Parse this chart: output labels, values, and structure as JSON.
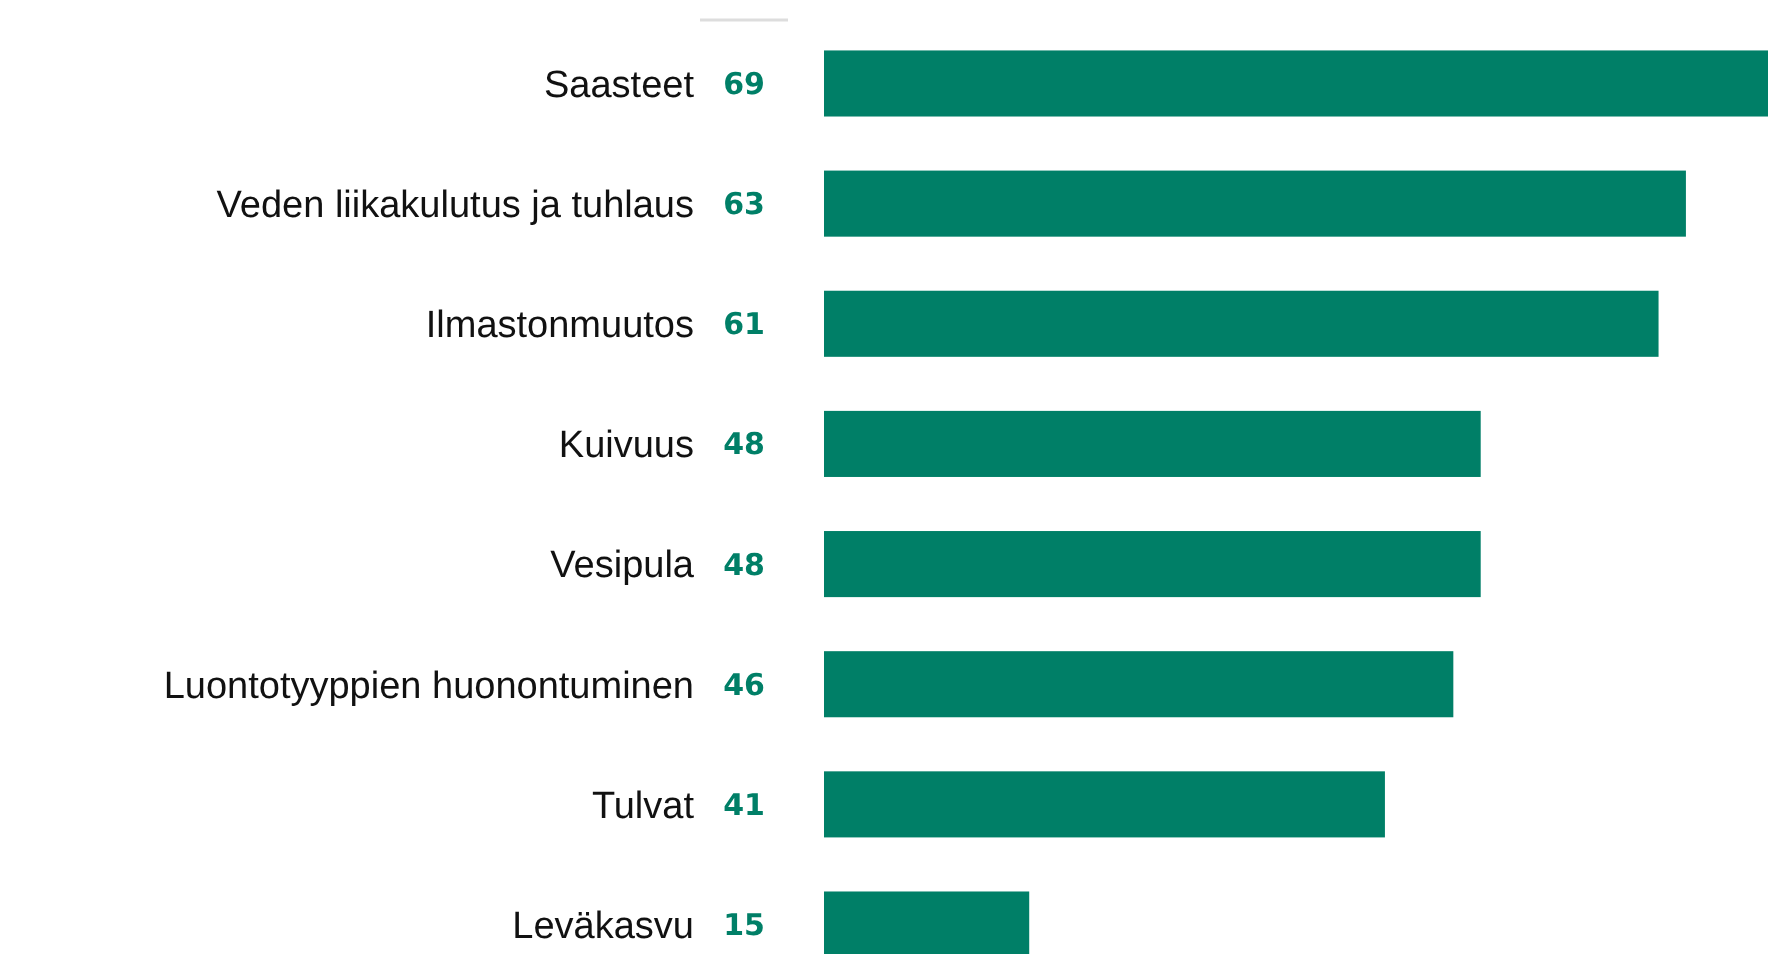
{
  "chart_data": {
    "type": "bar",
    "orientation": "horizontal",
    "categories": [
      "Saasteet",
      "Veden liikakulutus ja tuhlaus",
      "Ilmastonmuutos",
      "Kuivuus",
      "Vesipula",
      "Luontotyyppien huonontuminen",
      "Tulvat",
      "Leväkasvu"
    ],
    "values": [
      69,
      63,
      61,
      48,
      48,
      46,
      41,
      15
    ],
    "color": "#007f67",
    "data_labels": true
  }
}
